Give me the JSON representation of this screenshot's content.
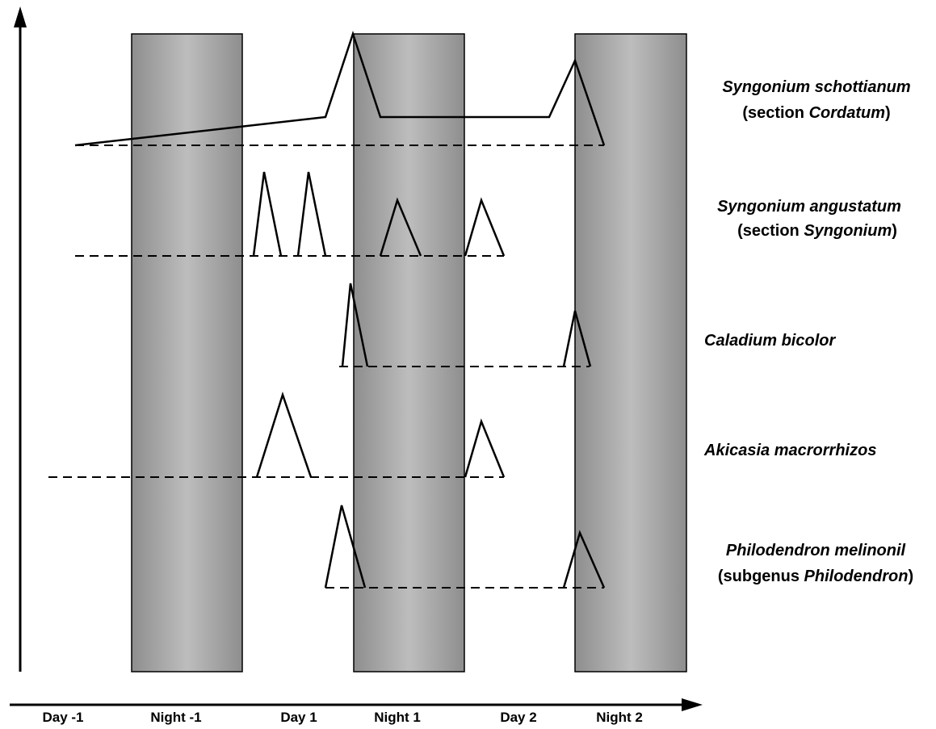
{
  "x_axis": {
    "labels": [
      "Day -1",
      "Night -1",
      "Day 1",
      "Night 1",
      "Day 2",
      "Night 2"
    ]
  },
  "species": [
    {
      "id": "syngonium-schottianum",
      "label_main": "Syngonium schottianum",
      "label_sub_prefix": "(section ",
      "label_sub_italic": "Cordatum",
      "label_sub_suffix": ")"
    },
    {
      "id": "syngonium-angustatum",
      "label_main": "Syngonium angustatum",
      "label_sub_prefix": "(section ",
      "label_sub_italic": "Syngonium",
      "label_sub_suffix": ")"
    },
    {
      "id": "caladium-bicolor",
      "label_main": "Caladium bicolor"
    },
    {
      "id": "akicasia-macrorrhizos",
      "label_main": "Akicasia macrorrhizos"
    },
    {
      "id": "philodendron-melinonii",
      "label_main": "Philodendron melinonil",
      "label_sub_prefix": "(subgenus ",
      "label_sub_italic": "Philodendron",
      "label_sub_suffix": ")"
    }
  ],
  "colors": {
    "night_band_light": "#bdbdbd",
    "night_band_dark": "#8e8e8e",
    "line": "#000000"
  }
}
